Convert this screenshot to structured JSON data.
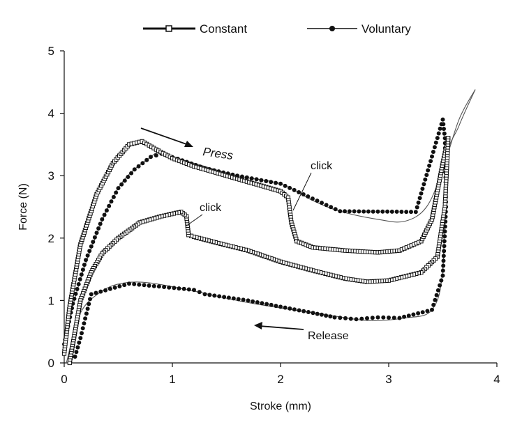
{
  "chart_data": {
    "type": "scatter",
    "xlabel": "Stroke (mm)",
    "ylabel": "Force (N)",
    "xlim": [
      0,
      4
    ],
    "ylim": [
      0,
      5
    ],
    "x_ticks": [
      "0",
      "1",
      "2",
      "3",
      "4"
    ],
    "y_ticks": [
      "0",
      "1",
      "2",
      "3",
      "4",
      "5"
    ],
    "grid": false,
    "legend_position": "top",
    "series": [
      {
        "name": "Constant",
        "marker": "open-square",
        "color": "#111111",
        "press": [
          [
            0.0,
            0.15
          ],
          [
            0.05,
            0.9
          ],
          [
            0.15,
            1.9
          ],
          [
            0.3,
            2.7
          ],
          [
            0.45,
            3.2
          ],
          [
            0.6,
            3.5
          ],
          [
            0.72,
            3.55
          ],
          [
            0.85,
            3.42
          ],
          [
            1.0,
            3.28
          ],
          [
            1.2,
            3.15
          ],
          [
            1.4,
            3.05
          ],
          [
            1.6,
            2.95
          ],
          [
            1.8,
            2.85
          ],
          [
            2.0,
            2.75
          ],
          [
            2.07,
            2.65
          ],
          [
            2.1,
            2.25
          ],
          [
            2.15,
            1.95
          ],
          [
            2.3,
            1.85
          ],
          [
            2.6,
            1.8
          ],
          [
            2.9,
            1.77
          ],
          [
            3.1,
            1.8
          ],
          [
            3.3,
            1.95
          ],
          [
            3.4,
            2.3
          ],
          [
            3.5,
            3.2
          ],
          [
            3.55,
            3.6
          ]
        ],
        "release": [
          [
            3.55,
            3.6
          ],
          [
            3.52,
            2.5
          ],
          [
            3.45,
            1.7
          ],
          [
            3.3,
            1.45
          ],
          [
            3.0,
            1.32
          ],
          [
            2.8,
            1.3
          ],
          [
            2.6,
            1.35
          ],
          [
            2.3,
            1.48
          ],
          [
            2.0,
            1.62
          ],
          [
            1.7,
            1.8
          ],
          [
            1.4,
            1.93
          ],
          [
            1.2,
            2.02
          ],
          [
            1.15,
            2.05
          ],
          [
            1.13,
            2.35
          ],
          [
            1.08,
            2.42
          ],
          [
            0.9,
            2.35
          ],
          [
            0.7,
            2.25
          ],
          [
            0.5,
            2.0
          ],
          [
            0.35,
            1.75
          ],
          [
            0.25,
            1.45
          ],
          [
            0.15,
            1.0
          ],
          [
            0.1,
            0.5
          ],
          [
            0.05,
            0.0
          ]
        ]
      },
      {
        "name": "Voluntary",
        "marker": "filled-circle",
        "color": "#111111",
        "points": [
          [
            0.0,
            0.3
          ],
          [
            0.08,
            0.95
          ],
          [
            0.2,
            1.65
          ],
          [
            0.35,
            2.3
          ],
          [
            0.5,
            2.8
          ],
          [
            0.65,
            3.1
          ],
          [
            0.8,
            3.3
          ],
          [
            0.9,
            3.35
          ],
          [
            1.05,
            3.27
          ],
          [
            1.3,
            3.12
          ],
          [
            1.6,
            3.0
          ],
          [
            2.0,
            2.87
          ],
          [
            2.55,
            2.43
          ],
          [
            3.25,
            2.42
          ],
          [
            3.5,
            3.9
          ],
          [
            3.52,
            3.6
          ],
          [
            3.53,
            2.5
          ],
          [
            3.5,
            1.4
          ],
          [
            3.4,
            0.85
          ],
          [
            3.1,
            0.72
          ],
          [
            2.9,
            0.73
          ],
          [
            2.7,
            0.7
          ],
          [
            2.5,
            0.73
          ],
          [
            2.3,
            0.8
          ],
          [
            2.0,
            0.9
          ],
          [
            1.7,
            1.0
          ],
          [
            1.3,
            1.1
          ],
          [
            1.2,
            1.17
          ],
          [
            0.6,
            1.27
          ],
          [
            0.25,
            1.1
          ],
          [
            0.15,
            0.4
          ],
          [
            0.1,
            0.1
          ]
        ],
        "press_curve": [
          [
            0.0,
            0.4
          ],
          [
            0.2,
            1.6
          ],
          [
            0.5,
            2.8
          ],
          [
            0.8,
            3.3
          ],
          [
            0.9,
            3.35
          ],
          [
            1.2,
            3.2
          ],
          [
            1.6,
            3.0
          ],
          [
            2.0,
            2.87
          ],
          [
            2.3,
            2.6
          ],
          [
            2.55,
            2.43
          ],
          [
            2.9,
            2.3
          ],
          [
            3.15,
            2.27
          ],
          [
            3.35,
            2.5
          ],
          [
            3.5,
            3.1
          ],
          [
            3.65,
            3.9
          ],
          [
            3.8,
            4.38
          ]
        ],
        "release_curve": [
          [
            3.8,
            4.38
          ],
          [
            3.65,
            3.8
          ],
          [
            3.53,
            3.2
          ],
          [
            3.5,
            1.5
          ],
          [
            3.4,
            0.85
          ],
          [
            3.15,
            0.72
          ],
          [
            2.8,
            0.68
          ],
          [
            2.4,
            0.78
          ],
          [
            2.0,
            0.88
          ],
          [
            1.6,
            1.0
          ],
          [
            1.2,
            1.15
          ],
          [
            0.8,
            1.28
          ],
          [
            0.55,
            1.28
          ],
          [
            0.35,
            1.15
          ],
          [
            0.15,
            0.8
          ],
          [
            0.02,
            0.0
          ]
        ]
      }
    ],
    "annotations": {
      "press": "Press",
      "release": "Release",
      "click_upper": "click",
      "click_lower": "click"
    }
  }
}
